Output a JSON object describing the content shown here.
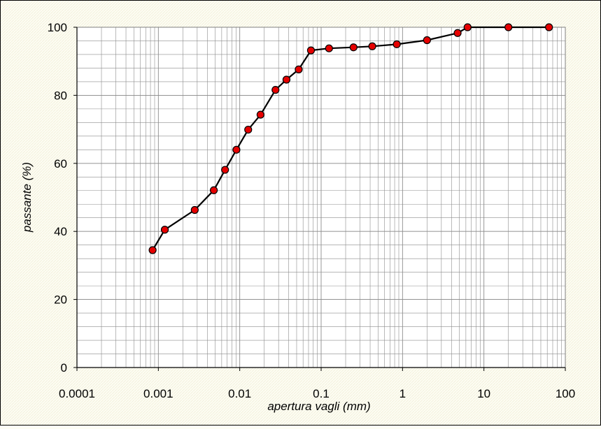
{
  "chart_data": {
    "type": "line",
    "title": "",
    "xlabel": "apertura vagli (mm)",
    "ylabel": "passante (%)",
    "x_scale": "log",
    "xlim": [
      0.0001,
      100
    ],
    "ylim": [
      0,
      100
    ],
    "x_ticks": [
      {
        "value": 0.0001,
        "label": "0.0001"
      },
      {
        "value": 0.001,
        "label": "0.001"
      },
      {
        "value": 0.01,
        "label": "0.01"
      },
      {
        "value": 0.1,
        "label": "0.1"
      },
      {
        "value": 1,
        "label": "1"
      },
      {
        "value": 10,
        "label": "10"
      },
      {
        "value": 100,
        "label": "100"
      }
    ],
    "y_ticks": [
      {
        "value": 0,
        "label": "0"
      },
      {
        "value": 20,
        "label": "20"
      },
      {
        "value": 40,
        "label": "40"
      },
      {
        "value": 60,
        "label": "60"
      },
      {
        "value": 80,
        "label": "80"
      },
      {
        "value": 100,
        "label": "100"
      }
    ],
    "grid": true,
    "legend": false,
    "colors": {
      "background": "#fdfdf4",
      "plot_background": "#ffffff",
      "grid": "#8c8c8c",
      "line": "#000000",
      "marker_fill": "#e60000",
      "marker_stroke": "#000000"
    },
    "series": [
      {
        "x": [
          0.00085,
          0.0012,
          0.0028,
          0.0048,
          0.0066,
          0.0091,
          0.0127,
          0.018,
          0.0275,
          0.0375,
          0.053,
          0.075,
          0.125,
          0.25,
          0.425,
          0.85,
          2.0,
          4.75,
          6.3,
          20,
          63
        ],
        "y": [
          34.5,
          40.5,
          46.3,
          52.1,
          58.1,
          64.0,
          69.9,
          74.3,
          81.6,
          84.6,
          87.6,
          93.2,
          93.8,
          94.1,
          94.4,
          95.0,
          96.2,
          98.3,
          100,
          100,
          100
        ]
      }
    ]
  }
}
